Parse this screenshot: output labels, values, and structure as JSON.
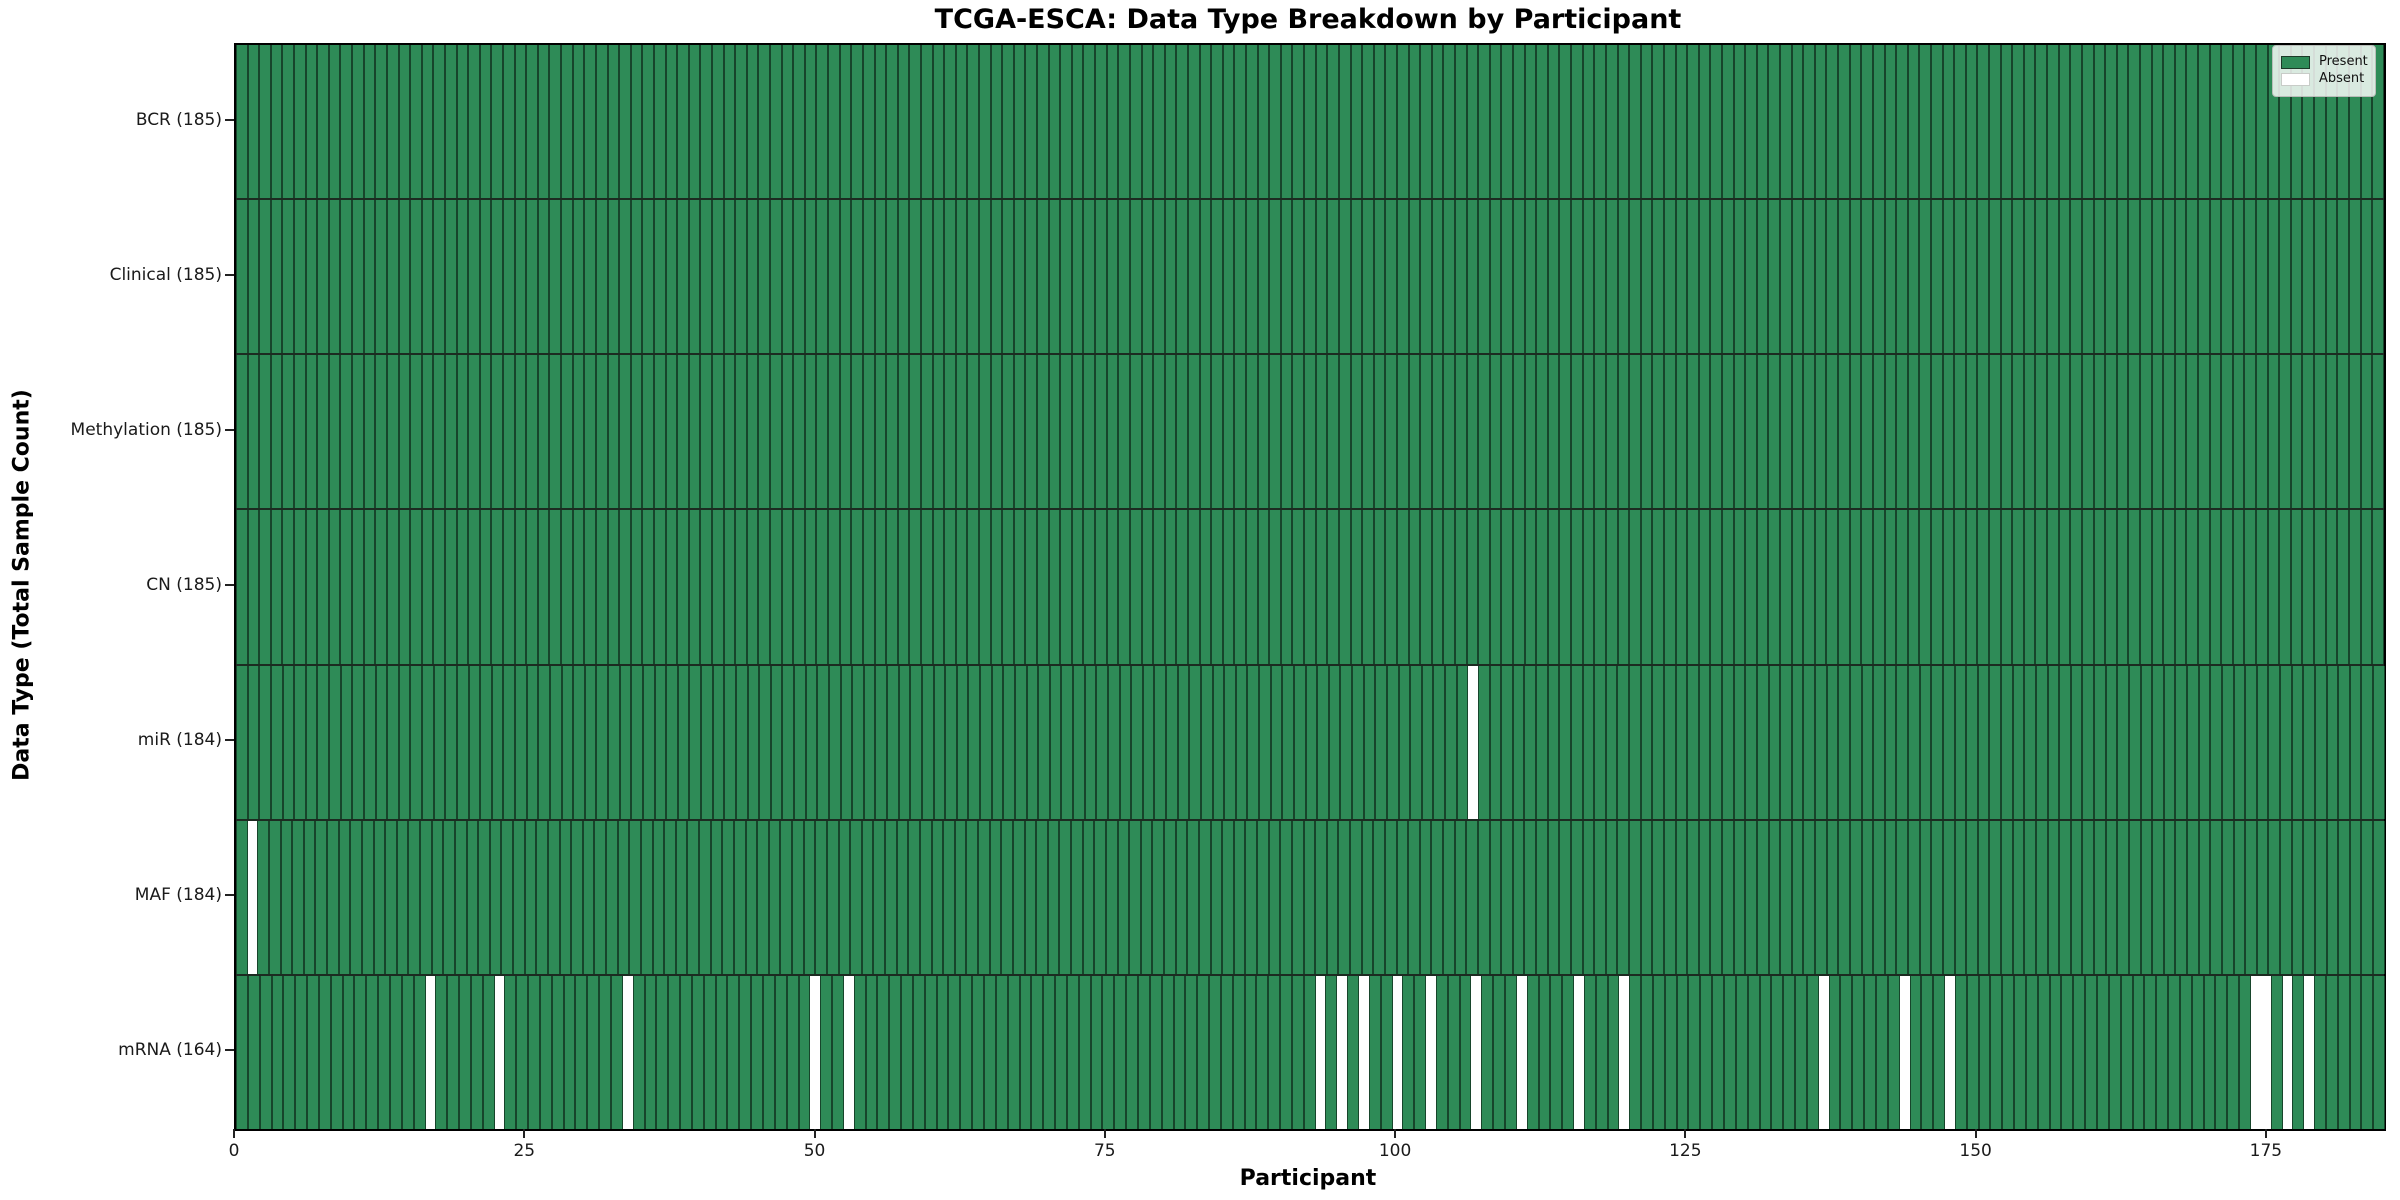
{
  "title": "TCGA-ESCA: Data Type Breakdown by Participant",
  "xlabel": "Participant",
  "ylabel": "Data Type (Total Sample Count)",
  "legend": {
    "items": [
      {
        "label": "Present",
        "color": "#2e8b57"
      },
      {
        "label": "Absent",
        "color": "#ffffff"
      }
    ]
  },
  "colors": {
    "present": "#2e8b57",
    "absent": "#ffffff",
    "cell_edge": "rgba(0,0,0,0.5)",
    "row_divider": "#1c2b21",
    "spine": "#000000"
  },
  "chart_data": {
    "type": "heatmap",
    "title": "TCGA-ESCA: Data Type Breakdown by Participant",
    "xlabel": "Participant",
    "ylabel": "Data Type (Total Sample Count)",
    "n_participants": 185,
    "x_range": [
      0,
      185
    ],
    "x_ticks": [
      0,
      25,
      50,
      75,
      100,
      125,
      150,
      175
    ],
    "legend_position": "upper right",
    "grid": false,
    "value_legend": {
      "present": 1,
      "absent": 0
    },
    "rows": [
      {
        "label": "BCR (185)",
        "name": "BCR",
        "present_count": 185,
        "absent_participants": []
      },
      {
        "label": "Clinical (185)",
        "name": "Clinical",
        "present_count": 185,
        "absent_participants": []
      },
      {
        "label": "Methylation (185)",
        "name": "Methylation",
        "present_count": 185,
        "absent_participants": []
      },
      {
        "label": "CN (185)",
        "name": "CN",
        "present_count": 185,
        "absent_participants": []
      },
      {
        "label": "miR (184)",
        "name": "miR",
        "present_count": 184,
        "absent_participants": [
          106
        ]
      },
      {
        "label": "MAF (184)",
        "name": "MAF",
        "present_count": 184,
        "absent_participants": [
          1
        ]
      },
      {
        "label": "mRNA (164)",
        "name": "mRNA",
        "present_count": 164,
        "absent_participants": [
          16,
          22,
          33,
          49,
          52,
          92,
          94,
          96,
          99,
          102,
          106,
          110,
          115,
          119,
          136,
          143,
          147,
          173,
          174,
          176,
          178
        ]
      }
    ]
  }
}
